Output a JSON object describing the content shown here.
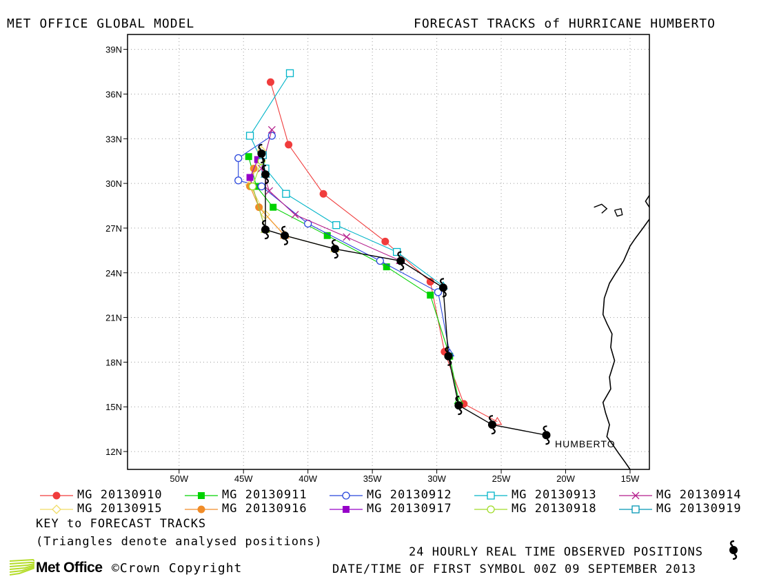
{
  "header": {
    "left_title": "MET OFFICE GLOBAL MODEL",
    "right_title": "FORECAST TRACKS of HURRICANE HUMBERTO"
  },
  "legend": [
    {
      "label": "MG 20130910",
      "color": "#f03c3c",
      "marker": "filled-circle"
    },
    {
      "label": "MG 20130911",
      "color": "#00d200",
      "marker": "filled-square"
    },
    {
      "label": "MG 20130912",
      "color": "#2846dc",
      "marker": "open-circle"
    },
    {
      "label": "MG 20130913",
      "color": "#00b4c8",
      "marker": "open-square"
    },
    {
      "label": "MG 20130914",
      "color": "#b41e8c",
      "marker": "x"
    },
    {
      "label": "MG 20130915",
      "color": "#f0dc64",
      "marker": "open-diamond"
    },
    {
      "label": "MG 20130916",
      "color": "#f08c28",
      "marker": "filled-circle"
    },
    {
      "label": "MG 20130917",
      "color": "#9600c8",
      "marker": "filled-square"
    },
    {
      "label": "MG 20130918",
      "color": "#a0dc28",
      "marker": "open-circle"
    },
    {
      "label": "MG 20130919",
      "color": "#0096b4",
      "marker": "open-square"
    }
  ],
  "notes": {
    "key": "KEY to FORECAST TRACKS",
    "triangles": "(Triangles denote analysed positions)",
    "observed": "24 HOURLY REAL TIME OBSERVED POSITIONS",
    "datetime": "DATE/TIME OF FIRST SYMBOL 00Z 09 SEPTEMBER 2013"
  },
  "branding": {
    "name": "Met Office",
    "copyright": "©Crown Copyright",
    "logo_color": "#b4dc28"
  },
  "chart_data": {
    "type": "map-tracks",
    "storm_label": "HUMBERTO",
    "x_ticks": [
      -50,
      -45,
      -40,
      -35,
      -30,
      -25,
      -20,
      -15
    ],
    "x_tick_labels": [
      "50W",
      "45W",
      "40W",
      "35W",
      "30W",
      "25W",
      "20W",
      "15W"
    ],
    "y_ticks": [
      12,
      15,
      18,
      21,
      24,
      27,
      30,
      33,
      36,
      39
    ],
    "y_tick_labels": [
      "12N",
      "15N",
      "18N",
      "21N",
      "24N",
      "27N",
      "30N",
      "33N",
      "36N",
      "39N"
    ],
    "xlim": [
      -54,
      -13.5
    ],
    "ylim": [
      10.8,
      40
    ],
    "grid": true,
    "observed_track": [
      [
        -21.5,
        13.1
      ],
      [
        -25.7,
        13.8
      ],
      [
        -28.3,
        15.1
      ],
      [
        -29.1,
        18.4
      ],
      [
        -29.5,
        23.0
      ],
      [
        -32.8,
        24.8
      ],
      [
        -37.9,
        25.6
      ],
      [
        -41.8,
        26.5
      ],
      [
        -43.3,
        26.9
      ],
      [
        -43.3,
        30.6
      ],
      [
        -43.6,
        32.0
      ]
    ],
    "tracks": [
      {
        "name": "MG 20130910",
        "points": [
          [
            -25.3,
            14.0
          ],
          [
            -27.9,
            15.2
          ],
          [
            -29.4,
            18.7
          ],
          [
            -30.5,
            23.4
          ],
          [
            -34.0,
            26.1
          ],
          [
            -38.8,
            29.3
          ],
          [
            -41.5,
            32.6
          ],
          [
            -42.9,
            36.8
          ]
        ]
      },
      {
        "name": "MG 20130911",
        "points": [
          [
            -28.3,
            15.4
          ],
          [
            -29.0,
            18.4
          ],
          [
            -30.5,
            22.5
          ],
          [
            -33.9,
            24.4
          ],
          [
            -38.5,
            26.5
          ],
          [
            -42.7,
            28.4
          ],
          [
            -44.0,
            29.8
          ],
          [
            -44.6,
            31.8
          ]
        ]
      },
      {
        "name": "MG 20130912",
        "points": [
          [
            -29.0,
            18.6
          ],
          [
            -29.9,
            22.7
          ],
          [
            -34.4,
            24.8
          ],
          [
            -40.0,
            27.3
          ],
          [
            -43.6,
            29.8
          ],
          [
            -45.4,
            30.2
          ],
          [
            -45.4,
            31.7
          ],
          [
            -42.8,
            33.2
          ]
        ]
      },
      {
        "name": "MG 20130913",
        "points": [
          [
            -29.5,
            23.1
          ],
          [
            -33.1,
            25.4
          ],
          [
            -37.8,
            27.2
          ],
          [
            -41.7,
            29.3
          ],
          [
            -43.3,
            31.0
          ],
          [
            -44.5,
            33.2
          ],
          [
            -41.4,
            37.4
          ]
        ]
      },
      {
        "name": "MG 20130914",
        "points": [
          [
            -32.8,
            24.8
          ],
          [
            -37.0,
            26.4
          ],
          [
            -41.0,
            27.9
          ],
          [
            -43.0,
            29.5
          ],
          [
            -43.6,
            31.0
          ],
          [
            -42.8,
            33.6
          ]
        ]
      },
      {
        "name": "MG 20130915",
        "points": [
          [
            -37.9,
            25.6
          ],
          [
            -41.8,
            26.5
          ],
          [
            -43.3,
            27.9
          ],
          [
            -44.5,
            29.9
          ],
          [
            -43.6,
            32.2
          ]
        ]
      },
      {
        "name": "MG 20130916",
        "points": [
          [
            -41.8,
            26.5
          ],
          [
            -43.8,
            28.4
          ],
          [
            -44.5,
            29.8
          ],
          [
            -44.2,
            31.0
          ]
        ]
      },
      {
        "name": "MG 20130917",
        "points": [
          [
            -43.3,
            26.9
          ],
          [
            -44.5,
            30.4
          ],
          [
            -43.9,
            31.6
          ]
        ]
      },
      {
        "name": "MG 20130918",
        "points": [
          [
            -43.3,
            26.9
          ],
          [
            -44.3,
            29.8
          ],
          [
            -43.6,
            31.5
          ]
        ]
      },
      {
        "name": "MG 20130919",
        "points": [
          [
            -43.3,
            30.6
          ],
          [
            -43.5,
            31.9
          ]
        ]
      }
    ]
  }
}
